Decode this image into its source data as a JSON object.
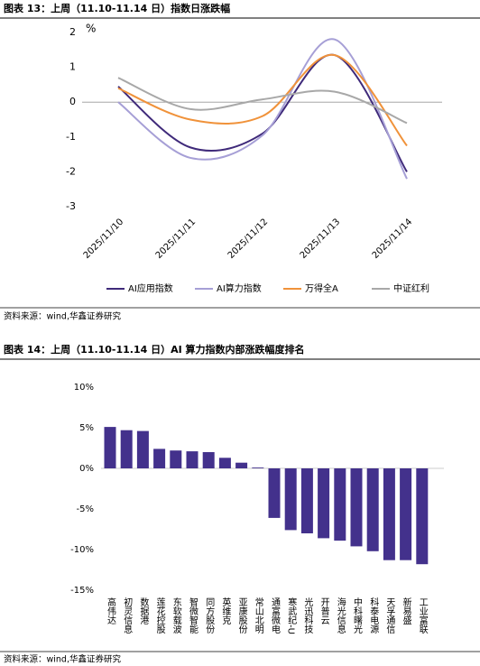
{
  "chart_data": [
    {
      "type": "line",
      "title": "图表 13：上周（11.10-11.14 日）指数日涨跌幅",
      "y_unit": "%",
      "categories": [
        "2025/11/10",
        "2025/11/11",
        "2025/11/12",
        "2025/11/13",
        "2025/11/14"
      ],
      "series": [
        {
          "name": "AI应用指数",
          "color": "#3f2a7a",
          "values": [
            0.45,
            -1.3,
            -0.9,
            1.35,
            -2.0
          ]
        },
        {
          "name": "AI算力指数",
          "color": "#a69fd6",
          "values": [
            0.0,
            -1.6,
            -0.95,
            1.8,
            -2.2
          ]
        },
        {
          "name": "万得全A",
          "color": "#f0923a",
          "values": [
            0.4,
            -0.5,
            -0.4,
            1.35,
            -1.25
          ]
        },
        {
          "name": "中证红利",
          "color": "#a8a8a8",
          "values": [
            0.7,
            -0.2,
            0.08,
            0.3,
            -0.6
          ]
        }
      ],
      "ylim": [
        -3,
        2
      ],
      "yticks": [
        -3,
        -2,
        -1,
        0,
        1,
        2
      ],
      "legend": "bottom",
      "source": "资料来源：wind,华鑫证券研究"
    },
    {
      "type": "bar",
      "title": "图表 14：上周（11.10-11.14 日）AI 算力指数内部涨跌幅度排名",
      "categories": [
        "高伟达",
        "初灵信息",
        "数据港",
        "莲花控股",
        "东软载波",
        "智微智能",
        "同方股份",
        "英维克",
        "亚康股份",
        "常山北明",
        "通富微电",
        "寒武纪-U",
        "光迅科技",
        "开普云",
        "海光信息",
        "中科曙光",
        "科泰电源",
        "天孚通信",
        "新易盛",
        "工业富联"
      ],
      "values": [
        5.1,
        4.7,
        4.6,
        2.4,
        2.2,
        2.1,
        2.0,
        1.3,
        0.7,
        0.1,
        -6.1,
        -7.6,
        -8.0,
        -8.6,
        -8.9,
        -9.6,
        -10.2,
        -11.3,
        -11.3,
        -11.8
      ],
      "color": "#43318c",
      "ylim": [
        -15,
        10
      ],
      "yticks": [
        {
          "value": -15,
          "label": "-15%"
        },
        {
          "value": -10,
          "label": "-10%"
        },
        {
          "value": -5,
          "label": "-5%"
        },
        {
          "value": 0,
          "label": "0%"
        },
        {
          "value": 5,
          "label": "5%"
        },
        {
          "value": 10,
          "label": "10%"
        }
      ],
      "source": "资料来源：wind,华鑫证券研究"
    }
  ]
}
